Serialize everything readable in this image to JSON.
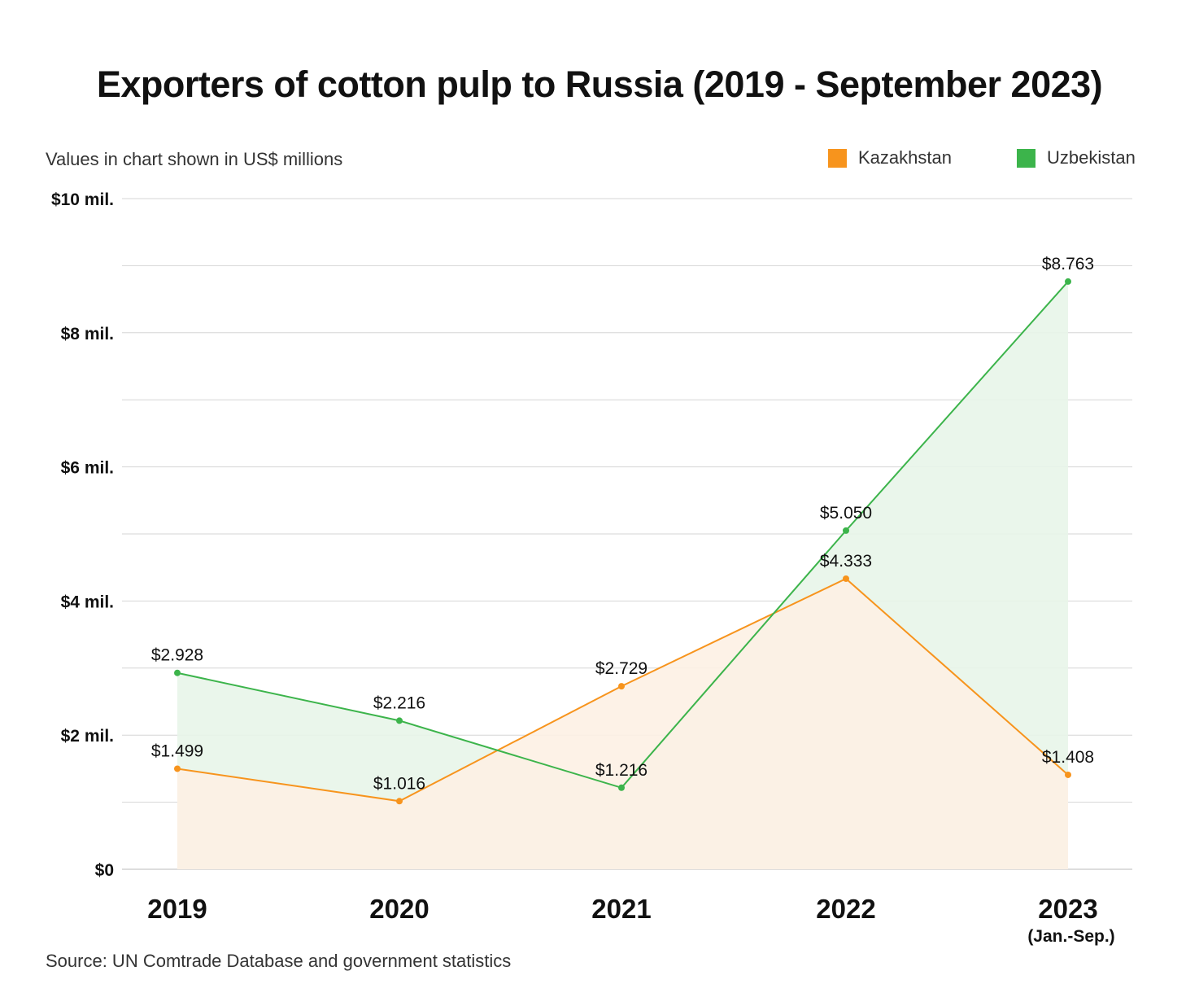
{
  "chart_data": {
    "type": "line",
    "title": "Exporters of cotton pulp to Russia (2019 - September 2023)",
    "subtitle": "Values in chart shown in US$ millions",
    "source": "Source: UN Comtrade Database and government statistics",
    "categories": [
      "2019",
      "2020",
      "2021",
      "2022",
      "2023"
    ],
    "category_sublabels": [
      "",
      "",
      "",
      "",
      "(Jan.-Sep.)"
    ],
    "series": [
      {
        "name": "Kazakhstan",
        "color": "#f7941d",
        "fill": "#fdf1e4",
        "values": [
          1.499,
          1.016,
          2.729,
          4.333,
          1.408
        ],
        "labels": [
          "$1.499",
          "$1.016",
          "$2.729",
          "$4.333",
          "$1.408"
        ]
      },
      {
        "name": "Uzbekistan",
        "color": "#3cb44b",
        "fill": "#e8f5e9",
        "values": [
          2.928,
          2.216,
          1.216,
          5.05,
          8.763
        ],
        "labels": [
          "$2.928",
          "$2.216",
          "$1.216",
          "$5.050",
          "$8.763"
        ]
      }
    ],
    "ylim": [
      0,
      10
    ],
    "y_ticks": [
      0,
      2,
      4,
      6,
      8,
      10
    ],
    "y_tick_labels": [
      "$0",
      "$2 mil.",
      "$4 mil.",
      "$6 mil.",
      "$8 mil.",
      "$10 mil."
    ],
    "y_minor_gridlines_every": 1,
    "grid": true,
    "legend_position": "top-right"
  }
}
